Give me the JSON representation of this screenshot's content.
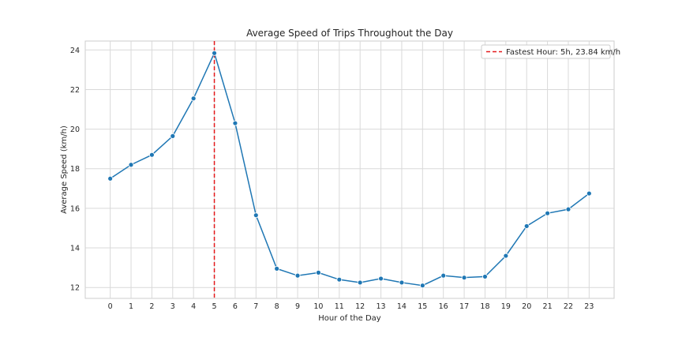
{
  "chart_data": {
    "type": "line",
    "title": "Average Speed of Trips Throughout the Day",
    "xlabel": "Hour of the Day",
    "ylabel": "Average Speed (km/h)",
    "x": [
      0,
      1,
      2,
      3,
      4,
      5,
      6,
      7,
      8,
      9,
      10,
      11,
      12,
      13,
      14,
      15,
      16,
      17,
      18,
      19,
      20,
      21,
      22,
      23
    ],
    "series": [
      {
        "values": [
          17.5,
          18.2,
          18.7,
          19.65,
          21.55,
          23.84,
          20.3,
          15.65,
          12.95,
          12.6,
          12.75,
          12.4,
          12.25,
          12.45,
          12.25,
          12.1,
          12.6,
          12.5,
          12.55,
          13.6,
          15.1,
          15.75,
          15.95,
          16.75
        ],
        "color": "#1f77b4"
      }
    ],
    "xlim": [
      -1.2,
      24.2
    ],
    "ylim": [
      11.45,
      24.45
    ],
    "yticks": [
      12,
      14,
      16,
      18,
      20,
      22,
      24
    ],
    "grid": true,
    "reference_line": {
      "x": 5,
      "label": "Fastest Hour: 5h, 23.84 km/h",
      "color": "#e41a1c",
      "style": "dashed"
    },
    "legend": {
      "position": "top-right"
    }
  }
}
